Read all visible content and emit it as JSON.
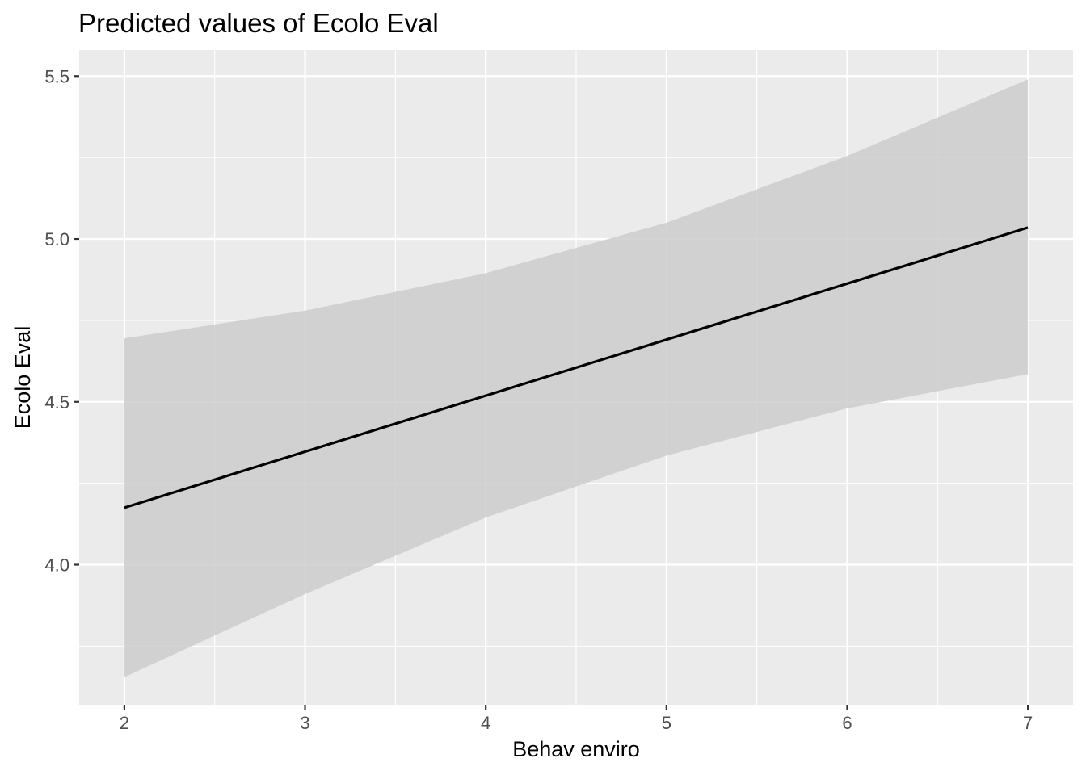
{
  "chart_data": {
    "type": "line",
    "title": "Predicted values of Ecolo Eval",
    "xlabel": "Behav enviro",
    "ylabel": "Ecolo Eval",
    "xlim": [
      1.75,
      7.25
    ],
    "ylim": [
      3.57,
      5.58
    ],
    "x_ticks": [
      2,
      3,
      4,
      5,
      6,
      7
    ],
    "x_tick_labels": [
      "2",
      "3",
      "4",
      "5",
      "6",
      "7"
    ],
    "x_minor_ticks": [
      2.5,
      3.5,
      4.5,
      5.5,
      6.5
    ],
    "y_ticks": [
      4.0,
      4.5,
      5.0,
      5.5
    ],
    "y_tick_labels": [
      "4.0",
      "4.5",
      "5.0",
      "5.5"
    ],
    "y_minor_ticks": [
      3.75,
      4.25,
      4.75,
      5.25
    ],
    "grid": true,
    "legend": "none",
    "colors": {
      "panel_background": "#ebebeb",
      "ribbon": "#cdcdcd",
      "line": "#000000"
    },
    "series": [
      {
        "x": [
          2,
          3,
          4,
          5,
          6,
          7
        ],
        "values": [
          4.175,
          4.347,
          4.519,
          4.691,
          4.863,
          5.035
        ],
        "ci_lower": [
          3.655,
          3.91,
          4.145,
          4.335,
          4.48,
          4.585
        ],
        "ci_upper": [
          4.695,
          4.78,
          4.895,
          5.05,
          5.255,
          5.49
        ]
      }
    ]
  }
}
